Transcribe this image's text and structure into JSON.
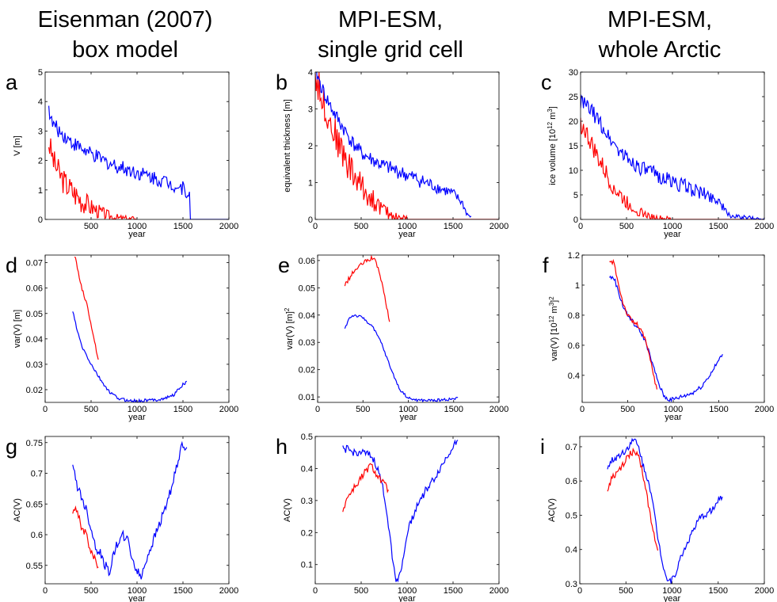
{
  "columns": [
    {
      "line1": "Eisenman (2007)",
      "line2": "box model"
    },
    {
      "line1": "MPI-ESM,",
      "line2": "single grid cell"
    },
    {
      "line1": "MPI-ESM,",
      "line2": "whole Arctic"
    }
  ],
  "colors": {
    "red": "#ff0000",
    "blue": "#0000ff"
  },
  "chart_data": [
    {
      "label": "a",
      "type": "line",
      "xlabel": "year",
      "ylabel": "V [m]",
      "xlim": [
        0,
        2000
      ],
      "ylim": [
        0,
        5
      ],
      "xticks": [
        500,
        1000,
        1500,
        2000
      ],
      "yticks": [
        0,
        1,
        2,
        3,
        4,
        5
      ],
      "series": [
        {
          "color": "red",
          "noise": 0.45,
          "x": [
            40,
            100,
            200,
            300,
            400,
            500,
            600,
            700,
            800,
            900,
            1000
          ],
          "y": [
            2.6,
            1.9,
            1.3,
            0.95,
            0.65,
            0.42,
            0.25,
            0.12,
            0.04,
            0.01,
            0
          ]
        },
        {
          "color": "blue",
          "noise": 0.25,
          "x": [
            40,
            70,
            150,
            300,
            500,
            700,
            900,
            1100,
            1300,
            1500,
            1570,
            1580,
            2000
          ],
          "y": [
            3.8,
            3.3,
            3.0,
            2.6,
            2.2,
            1.9,
            1.7,
            1.5,
            1.3,
            1.05,
            0.9,
            0,
            0
          ]
        }
      ]
    },
    {
      "label": "b",
      "type": "line",
      "xlabel": "year",
      "ylabel": "equivalent thickness [m]",
      "xlim": [
        0,
        2000
      ],
      "ylim": [
        0,
        4
      ],
      "xticks": [
        0,
        500,
        1000,
        1500,
        2000
      ],
      "yticks": [
        0,
        1,
        2,
        3,
        4
      ],
      "series": [
        {
          "color": "red",
          "noise": 0.45,
          "x": [
            0,
            50,
            100,
            200,
            300,
            400,
            500,
            600,
            700,
            800,
            900,
            1000,
            1100,
            2000
          ],
          "y": [
            3.9,
            3.5,
            3.1,
            2.4,
            1.8,
            1.3,
            0.9,
            0.6,
            0.35,
            0.15,
            0.05,
            0,
            0,
            0
          ]
        },
        {
          "color": "blue",
          "noise": 0.2,
          "x": [
            0,
            50,
            100,
            200,
            300,
            400,
            500,
            700,
            900,
            1100,
            1300,
            1500,
            1600,
            1650,
            1700
          ],
          "y": [
            4.1,
            3.7,
            3.4,
            2.9,
            2.5,
            2.1,
            1.8,
            1.5,
            1.3,
            1.1,
            0.9,
            0.7,
            0.45,
            0.15,
            0.05
          ]
        }
      ]
    },
    {
      "label": "c",
      "type": "line",
      "xlabel": "year",
      "ylabel": "ice volume [10^12 m^3]",
      "xlim": [
        0,
        2000
      ],
      "ylim": [
        0,
        30
      ],
      "xticks": [
        0,
        500,
        1000,
        1500,
        2000
      ],
      "yticks": [
        0,
        5,
        10,
        15,
        20,
        25,
        30
      ],
      "series": [
        {
          "color": "red",
          "noise": 2.0,
          "x": [
            0,
            50,
            100,
            200,
            300,
            400,
            500,
            600,
            700,
            800,
            900,
            1000,
            2000
          ],
          "y": [
            19.5,
            18,
            16,
            12,
            8.5,
            5.5,
            3.5,
            2,
            1,
            0.4,
            0.15,
            0,
            0
          ]
        },
        {
          "color": "blue",
          "noise": 1.6,
          "x": [
            0,
            100,
            200,
            300,
            400,
            500,
            700,
            900,
            1100,
            1300,
            1500,
            1550,
            1600,
            1700,
            2000
          ],
          "y": [
            24,
            22.5,
            20,
            17,
            14.5,
            12.5,
            10,
            8.5,
            7,
            5.5,
            4,
            2.5,
            1,
            0.5,
            0
          ]
        }
      ]
    },
    {
      "label": "d",
      "type": "line",
      "xlabel": "year",
      "ylabel": "var(V) [m]",
      "xlim": [
        0,
        2000
      ],
      "ylim": [
        0.015,
        0.073
      ],
      "xticks": [
        0,
        500,
        1000,
        1500,
        2000
      ],
      "yticks": [
        0.02,
        0.03,
        0.04,
        0.05,
        0.06,
        0.07
      ],
      "series": [
        {
          "color": "red",
          "noise": 0.0008,
          "x": [
            320,
            350,
            400,
            450,
            500,
            550,
            580
          ],
          "y": [
            0.073,
            0.068,
            0.06,
            0.054,
            0.046,
            0.037,
            0.031
          ]
        },
        {
          "color": "blue",
          "noise": 0.0006,
          "x": [
            300,
            350,
            400,
            500,
            600,
            700,
            800,
            900,
            1000,
            1100,
            1200,
            1300,
            1400,
            1500,
            1550
          ],
          "y": [
            0.051,
            0.043,
            0.037,
            0.03,
            0.024,
            0.019,
            0.0165,
            0.0158,
            0.0155,
            0.0158,
            0.016,
            0.0165,
            0.018,
            0.022,
            0.023
          ]
        }
      ]
    },
    {
      "label": "e",
      "type": "line",
      "xlabel": "year",
      "ylabel": "var(V) [m]^2",
      "xlim": [
        0,
        2000
      ],
      "ylim": [
        0.008,
        0.062
      ],
      "xticks": [
        0,
        500,
        1000,
        1500,
        2000
      ],
      "yticks": [
        0.01,
        0.02,
        0.03,
        0.04,
        0.05,
        0.06
      ],
      "series": [
        {
          "color": "red",
          "noise": 0.0008,
          "x": [
            300,
            400,
            500,
            600,
            650,
            700,
            750,
            800
          ],
          "y": [
            0.051,
            0.056,
            0.059,
            0.061,
            0.059,
            0.053,
            0.045,
            0.036
          ]
        },
        {
          "color": "blue",
          "noise": 0.0005,
          "x": [
            300,
            350,
            400,
            500,
            600,
            700,
            800,
            900,
            1000,
            1100,
            1200,
            1300,
            1400,
            1500,
            1550
          ],
          "y": [
            0.035,
            0.039,
            0.04,
            0.039,
            0.036,
            0.03,
            0.021,
            0.013,
            0.0095,
            0.0088,
            0.0087,
            0.0088,
            0.009,
            0.0093,
            0.0095
          ]
        }
      ]
    },
    {
      "label": "f",
      "type": "line",
      "xlabel": "year",
      "ylabel": "var(V) [10^12 m^3]^2",
      "xlim": [
        0,
        2000
      ],
      "ylim": [
        0.22,
        1.2
      ],
      "xticks": [
        0,
        500,
        1000,
        1500,
        2000
      ],
      "yticks": [
        0.4,
        0.6,
        0.8,
        1,
        1.2
      ],
      "series": [
        {
          "color": "blue",
          "noise": 0.015,
          "x": [
            300,
            350,
            400,
            450,
            500,
            550,
            600,
            650,
            700,
            750,
            800,
            850,
            900,
            950,
            1000,
            1100,
            1200,
            1300,
            1400,
            1500,
            1550
          ],
          "y": [
            1.05,
            1.05,
            0.95,
            0.86,
            0.8,
            0.76,
            0.72,
            0.68,
            0.62,
            0.52,
            0.42,
            0.33,
            0.26,
            0.24,
            0.24,
            0.26,
            0.28,
            0.32,
            0.4,
            0.5,
            0.55
          ]
        },
        {
          "color": "red",
          "noise": 0.015,
          "x": [
            300,
            350,
            400,
            450,
            500,
            550,
            600,
            650,
            700,
            750,
            800,
            830
          ],
          "y": [
            1.15,
            1.15,
            1.0,
            0.88,
            0.8,
            0.76,
            0.74,
            0.7,
            0.62,
            0.5,
            0.36,
            0.28
          ]
        }
      ]
    },
    {
      "label": "g",
      "type": "line",
      "xlabel": "year",
      "ylabel": "AC(V)",
      "xlim": [
        0,
        2000
      ],
      "ylim": [
        0.52,
        0.76
      ],
      "xticks": [
        0,
        500,
        1000,
        1500,
        2000
      ],
      "yticks": [
        0.55,
        0.6,
        0.65,
        0.7,
        0.75
      ],
      "series": [
        {
          "color": "blue",
          "noise": 0.008,
          "x": [
            300,
            350,
            400,
            450,
            500,
            550,
            600,
            650,
            700,
            750,
            800,
            850,
            900,
            950,
            1000,
            1050,
            1100,
            1200,
            1300,
            1400,
            1450,
            1500,
            1550
          ],
          "y": [
            0.71,
            0.68,
            0.66,
            0.64,
            0.61,
            0.58,
            0.57,
            0.55,
            0.54,
            0.57,
            0.59,
            0.6,
            0.59,
            0.56,
            0.54,
            0.53,
            0.56,
            0.6,
            0.64,
            0.69,
            0.72,
            0.75,
            0.74
          ]
        },
        {
          "color": "red",
          "noise": 0.006,
          "x": [
            300,
            350,
            400,
            450,
            500,
            550,
            580
          ],
          "y": [
            0.64,
            0.64,
            0.61,
            0.6,
            0.57,
            0.56,
            0.545
          ]
        }
      ]
    },
    {
      "label": "h",
      "type": "line",
      "xlabel": "year",
      "ylabel": "AC(V)",
      "xlim": [
        0,
        2000
      ],
      "ylim": [
        0.04,
        0.5
      ],
      "xticks": [
        0,
        500,
        1000,
        1500,
        2000
      ],
      "yticks": [
        0.1,
        0.2,
        0.3,
        0.4,
        0.5
      ],
      "series": [
        {
          "color": "blue",
          "noise": 0.012,
          "x": [
            300,
            350,
            400,
            500,
            600,
            650,
            700,
            750,
            800,
            850,
            880,
            900,
            950,
            1000,
            1100,
            1200,
            1300,
            1400,
            1500,
            1560
          ],
          "y": [
            0.46,
            0.46,
            0.45,
            0.45,
            0.44,
            0.42,
            0.38,
            0.32,
            0.22,
            0.1,
            0.05,
            0.06,
            0.1,
            0.2,
            0.28,
            0.33,
            0.37,
            0.42,
            0.47,
            0.5
          ]
        },
        {
          "color": "red",
          "noise": 0.012,
          "x": [
            300,
            350,
            400,
            450,
            500,
            550,
            600,
            650,
            700,
            750,
            800
          ],
          "y": [
            0.27,
            0.31,
            0.33,
            0.35,
            0.37,
            0.39,
            0.41,
            0.39,
            0.37,
            0.35,
            0.33
          ]
        }
      ]
    },
    {
      "label": "i",
      "type": "line",
      "xlabel": "year",
      "ylabel": "AC(V)",
      "xlim": [
        0,
        2000
      ],
      "ylim": [
        0.3,
        0.73
      ],
      "xticks": [
        0,
        500,
        1000,
        1500,
        2000
      ],
      "yticks": [
        0.3,
        0.4,
        0.5,
        0.6,
        0.7
      ],
      "series": [
        {
          "color": "blue",
          "noise": 0.01,
          "x": [
            300,
            350,
            400,
            450,
            500,
            550,
            600,
            650,
            700,
            750,
            800,
            850,
            900,
            950,
            1000,
            1050,
            1100,
            1200,
            1300,
            1400,
            1450,
            1500,
            1550
          ],
          "y": [
            0.64,
            0.66,
            0.67,
            0.68,
            0.69,
            0.71,
            0.72,
            0.69,
            0.63,
            0.6,
            0.52,
            0.43,
            0.36,
            0.31,
            0.31,
            0.34,
            0.38,
            0.44,
            0.49,
            0.51,
            0.52,
            0.54,
            0.56
          ]
        },
        {
          "color": "red",
          "noise": 0.01,
          "x": [
            300,
            350,
            400,
            450,
            500,
            550,
            600,
            650,
            700,
            750,
            800,
            850
          ],
          "y": [
            0.57,
            0.61,
            0.62,
            0.64,
            0.66,
            0.68,
            0.69,
            0.66,
            0.6,
            0.52,
            0.45,
            0.4
          ]
        }
      ]
    }
  ]
}
